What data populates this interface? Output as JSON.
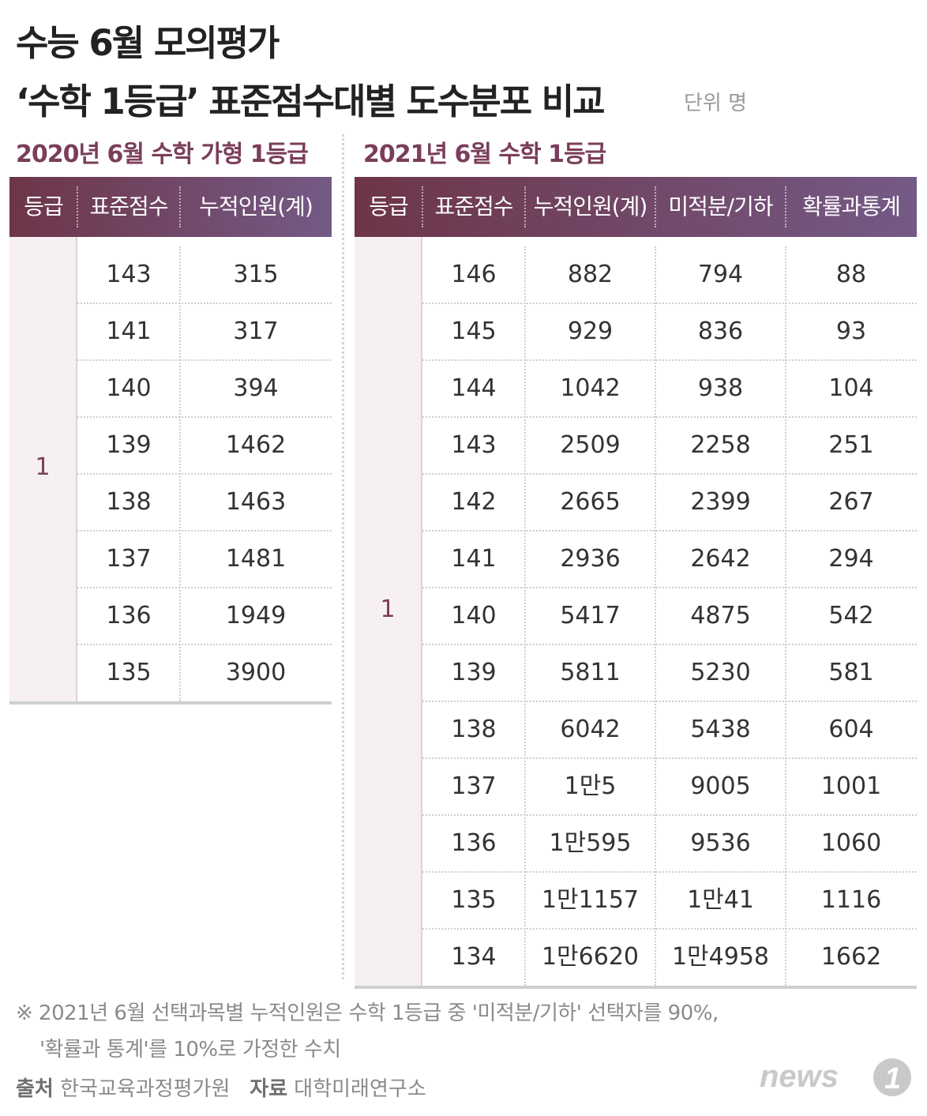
{
  "title_line1": "수능 6월 모의평가",
  "title_line2": "‘수학 1등급’ 표준점수대별 도수분포 비교",
  "unit": "단위 명",
  "left": {
    "section_title": "2020년 6월 수학 가형 1등급",
    "headers": [
      "등급",
      "표준점수",
      "누적인원(계)"
    ],
    "grade": "1",
    "rows": [
      [
        "143",
        "315"
      ],
      [
        "141",
        "317"
      ],
      [
        "140",
        "394"
      ],
      [
        "139",
        "1462"
      ],
      [
        "138",
        "1463"
      ],
      [
        "137",
        "1481"
      ],
      [
        "136",
        "1949"
      ],
      [
        "135",
        "3900"
      ]
    ]
  },
  "right": {
    "section_title": "2021년 6월 수학 1등급",
    "headers": [
      "등급",
      "표준점수",
      "누적인원(계)",
      "미적분/기하",
      "확률과통계"
    ],
    "grade": "1",
    "rows": [
      [
        "146",
        "882",
        "794",
        "88"
      ],
      [
        "145",
        "929",
        "836",
        "93"
      ],
      [
        "144",
        "1042",
        "938",
        "104"
      ],
      [
        "143",
        "2509",
        "2258",
        "251"
      ],
      [
        "142",
        "2665",
        "2399",
        "267"
      ],
      [
        "141",
        "2936",
        "2642",
        "294"
      ],
      [
        "140",
        "5417",
        "4875",
        "542"
      ],
      [
        "139",
        "5811",
        "5230",
        "581"
      ],
      [
        "138",
        "6042",
        "5438",
        "604"
      ],
      [
        "137",
        "1만5",
        "9005",
        "1001"
      ],
      [
        "136",
        "1만595",
        "9536",
        "1060"
      ],
      [
        "135",
        "1만1157",
        "1만41",
        "1116"
      ],
      [
        "134",
        "1만6620",
        "1만4958",
        "1662"
      ]
    ]
  },
  "note_line1": "※ 2021년 6월 선택과목별 누적인원은 수학 1등급 중 '미적분/기하' 선택자를 90%,",
  "note_line2": "'확률과 통계'를 10%로 가정한 수치",
  "source_label": "출처",
  "source_value": "한국교육과정평가원",
  "data_label": "자료",
  "data_value": "대학미래연구소",
  "logo_text": "news1"
}
